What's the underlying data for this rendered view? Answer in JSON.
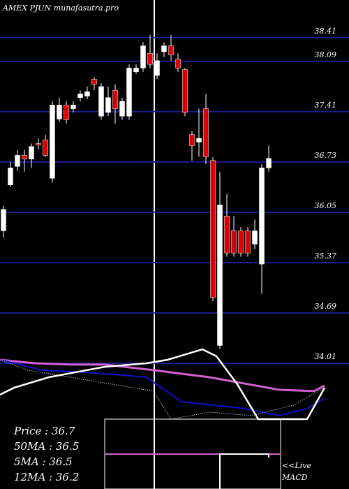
{
  "chart_data": {
    "type": "candlestick",
    "title": "AMEX PJUN munafasutra.pro",
    "x": [
      0,
      1,
      2,
      3,
      4,
      5,
      6,
      7,
      8,
      9,
      10,
      11,
      12,
      13,
      14,
      15,
      16,
      17,
      18,
      19,
      20,
      21,
      22,
      23,
      24,
      25,
      26,
      27,
      28,
      29,
      30,
      31,
      32,
      33,
      34,
      35,
      36,
      37,
      38
    ],
    "open": [
      35.8,
      36.42,
      36.67,
      36.82,
      36.77,
      36.98,
      37.03,
      36.51,
      37.31,
      37.5,
      37.45,
      37.6,
      37.62,
      37.85,
      37.35,
      37.4,
      37.7,
      37.35,
      37.35,
      37.95,
      38.0,
      38.2,
      37.9,
      38.22,
      38.3,
      38.12,
      37.98,
      37.1,
      37.0,
      37.45,
      36.75,
      34.25,
      36.0,
      35.8,
      35.8,
      35.8,
      35.62,
      35.35,
      36.65
    ],
    "high": [
      36.14,
      36.73,
      36.89,
      36.9,
      36.98,
      37.05,
      37.1,
      37.55,
      37.6,
      37.55,
      37.55,
      37.7,
      37.75,
      37.88,
      37.8,
      37.75,
      37.78,
      37.6,
      38.05,
      38.05,
      38.35,
      38.45,
      38.2,
      38.35,
      38.45,
      38.2,
      38.0,
      37.15,
      37.45,
      37.65,
      36.8,
      36.6,
      36.3,
      36.0,
      35.85,
      35.85,
      35.95,
      36.7,
      36.95
    ],
    "low": [
      35.71,
      36.39,
      36.61,
      36.6,
      36.65,
      36.9,
      36.8,
      36.45,
      37.27,
      37.25,
      37.4,
      37.55,
      37.58,
      37.7,
      37.3,
      37.35,
      37.25,
      37.3,
      37.3,
      37.92,
      37.95,
      38.0,
      37.85,
      38.15,
      38.1,
      37.95,
      37.35,
      36.75,
      36.8,
      36.7,
      34.85,
      34.2,
      35.45,
      35.45,
      35.45,
      35.45,
      35.55,
      34.95,
      36.6
    ],
    "close": [
      36.09,
      36.65,
      36.82,
      36.77,
      36.94,
      36.96,
      36.82,
      37.5,
      37.5,
      37.3,
      37.5,
      37.65,
      37.68,
      37.78,
      37.75,
      37.6,
      37.45,
      37.55,
      38.0,
      38.0,
      38.3,
      38.05,
      38.1,
      38.3,
      38.18,
      38.0,
      37.4,
      36.95,
      37.05,
      36.8,
      34.9,
      36.15,
      35.5,
      35.5,
      35.5,
      35.5,
      35.8,
      36.65,
      36.78
    ],
    "up_color": "#ffffff",
    "down_color": "#dd0000",
    "xlim": [
      -0.5,
      49.5
    ],
    "ylim": [
      32.31,
      38.92
    ],
    "yticks": [
      38.41,
      38.09,
      37.41,
      36.73,
      36.05,
      35.37,
      34.69,
      34.01
    ],
    "grid": true,
    "grid_color": "#1c1c88",
    "info": [
      "Price  : 36.7",
      "50MA : 36.5",
      "5MA : 36.5",
      "12MA : 36.2"
    ],
    "live_label": "<<Live",
    "macd_label": "MACD",
    "indicators": {
      "ylim": [
        0,
        100
      ],
      "series": [
        {
          "color": "#d060d0",
          "width": 3,
          "x": [
            -0.5,
            4.5,
            9.5,
            14.5,
            21.5,
            29.5,
            39.5,
            44.5,
            46
          ],
          "values": [
            88.1,
            85.7,
            84.8,
            84.8,
            81.0,
            76.2,
            67.6,
            66.7,
            70.5
          ]
        },
        {
          "color": "#1010c0",
          "width": 2,
          "x": [
            -0.5,
            5.5,
            9.5,
            14.5,
            20.5,
            25.5,
            34.5,
            39.5,
            43.5,
            46
          ],
          "values": [
            88.1,
            81.0,
            80.0,
            78.6,
            76.2,
            59.5,
            54.8,
            50.0,
            54.8,
            61.9
          ]
        },
        {
          "color": "#ffffff",
          "width": 2.5,
          "x": [
            -0.5,
            1.5,
            6.5,
            14.5,
            20.5,
            23.5,
            28.5,
            30.5,
            33.5,
            36.5,
            43.5,
            46
          ],
          "values": [
            64.3,
            69.0,
            76.2,
            83.3,
            85.7,
            88.1,
            95.2,
            90.5,
            71.4,
            47.6,
            47.6,
            69.0
          ]
        },
        {
          "color": "#ffffff",
          "width": 1,
          "style": "dotted",
          "x": [
            -0.5,
            3.5,
            21.5,
            24,
            29.5,
            35.5,
            41.5,
            46
          ],
          "values": [
            88.1,
            81.0,
            66.7,
            47.6,
            52.4,
            50.0,
            57.1,
            69.0
          ]
        }
      ]
    }
  }
}
